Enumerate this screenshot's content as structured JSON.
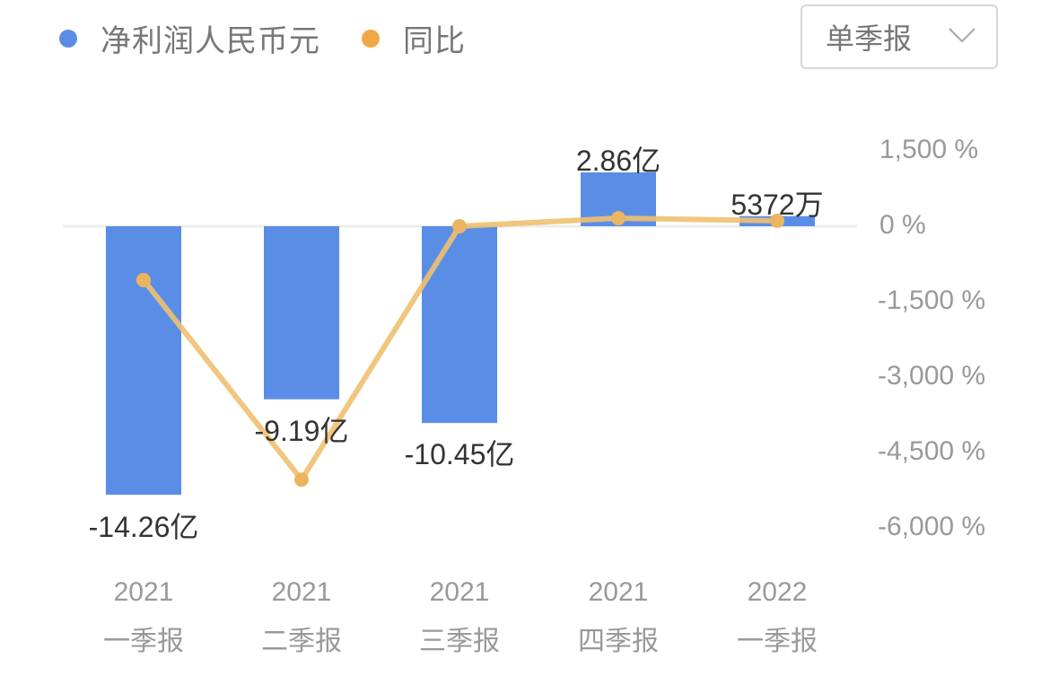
{
  "legend": {
    "items": [
      {
        "label": "净利润人民币元",
        "color": "#5a8ee6",
        "icon": "circle-dot"
      },
      {
        "label": "同比",
        "color": "#f0a845",
        "icon": "circle-dot"
      }
    ]
  },
  "period_selector": {
    "selected": "单季报",
    "icon": "chevron-down-icon"
  },
  "chart_data": {
    "type": "bar+line",
    "title": "",
    "categories": [
      "2021 一季报",
      "2021 二季报",
      "2021 三季报",
      "2021 四季报",
      "2022 一季报"
    ],
    "category_years": [
      "2021",
      "2021",
      "2021",
      "2021",
      "2022"
    ],
    "category_quarters": [
      "一季报",
      "二季报",
      "三季报",
      "四季报",
      "一季报"
    ],
    "series": [
      {
        "name": "净利润人民币元",
        "type": "bar",
        "axis": "left (hidden)",
        "color": "#5a8ee6",
        "values_yi": [
          -14.26,
          -9.19,
          -10.45,
          2.86,
          0.5372
        ],
        "data_labels": [
          "-14.26亿",
          "-9.19亿",
          "-10.45亿",
          "2.86亿",
          "5372万"
        ]
      },
      {
        "name": "同比",
        "type": "line",
        "axis": "right",
        "color": "#f0c070",
        "values_percent": [
          -1070,
          -5040,
          0,
          160,
          110
        ]
      }
    ],
    "right_axis": {
      "ticks": [
        "1,500 %",
        "0 %",
        "-1,500 %",
        "-3,000 %",
        "-4,500 %",
        "-6,000 %"
      ],
      "tick_values": [
        1500,
        0,
        -1500,
        -3000,
        -4500,
        -6000
      ],
      "ylim": [
        -6000,
        1500
      ]
    },
    "xlabel": "",
    "ylabel": "",
    "grid": false,
    "legend_position": "top-left"
  }
}
